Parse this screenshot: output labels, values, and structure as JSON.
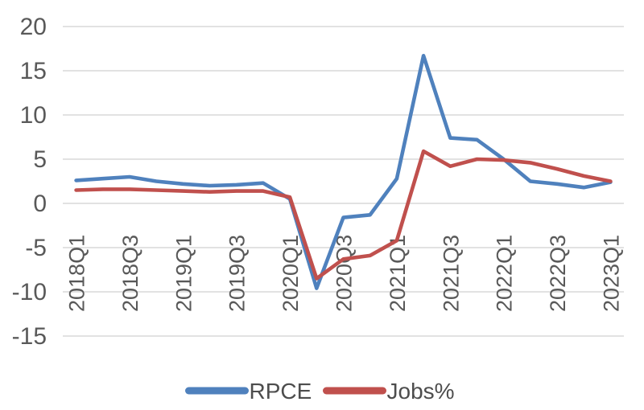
{
  "chart_data": {
    "type": "line",
    "title": "",
    "xlabel": "",
    "ylabel": "",
    "x": [
      "2018Q1",
      "2018Q2",
      "2018Q3",
      "2018Q4",
      "2019Q1",
      "2019Q2",
      "2019Q3",
      "2019Q4",
      "2020Q1",
      "2020Q2",
      "2020Q3",
      "2020Q4",
      "2021Q1",
      "2021Q2",
      "2021Q3",
      "2021Q4",
      "2022Q1",
      "2022Q2",
      "2022Q3",
      "2022Q4",
      "2023Q1"
    ],
    "x_tick_labels": [
      "2018Q1",
      "2018Q3",
      "2019Q1",
      "2019Q3",
      "2020Q1",
      "2020Q3",
      "2021Q1",
      "2021Q3",
      "2022Q1",
      "2022Q3",
      "2023Q1"
    ],
    "x_tick_every": 2,
    "series": [
      {
        "name": "RPCE",
        "color": "#4F81BD",
        "values": [
          2.6,
          2.8,
          3.0,
          2.5,
          2.2,
          2.0,
          2.1,
          2.3,
          0.5,
          -9.6,
          -1.6,
          -1.3,
          2.8,
          16.7,
          7.4,
          7.2,
          5.0,
          2.5,
          2.2,
          1.8,
          2.4
        ]
      },
      {
        "name": "Jobs%",
        "color": "#C0504D",
        "values": [
          1.5,
          1.6,
          1.6,
          1.5,
          1.4,
          1.3,
          1.4,
          1.4,
          0.7,
          -8.5,
          -6.3,
          -5.9,
          -4.2,
          5.9,
          4.2,
          5.0,
          4.9,
          4.6,
          3.9,
          3.1,
          2.5
        ]
      }
    ],
    "ylim": [
      -15,
      20
    ],
    "ytick_step": 5,
    "ytick_labels": [
      "20",
      "15",
      "10",
      "5",
      "0",
      "-5",
      "-10",
      "-15"
    ],
    "grid": true,
    "gridline_color": "#D9D9D9",
    "axis_label_color": "#595959",
    "legend_position": "bottom",
    "legend": [
      "RPCE",
      "Jobs%"
    ]
  }
}
